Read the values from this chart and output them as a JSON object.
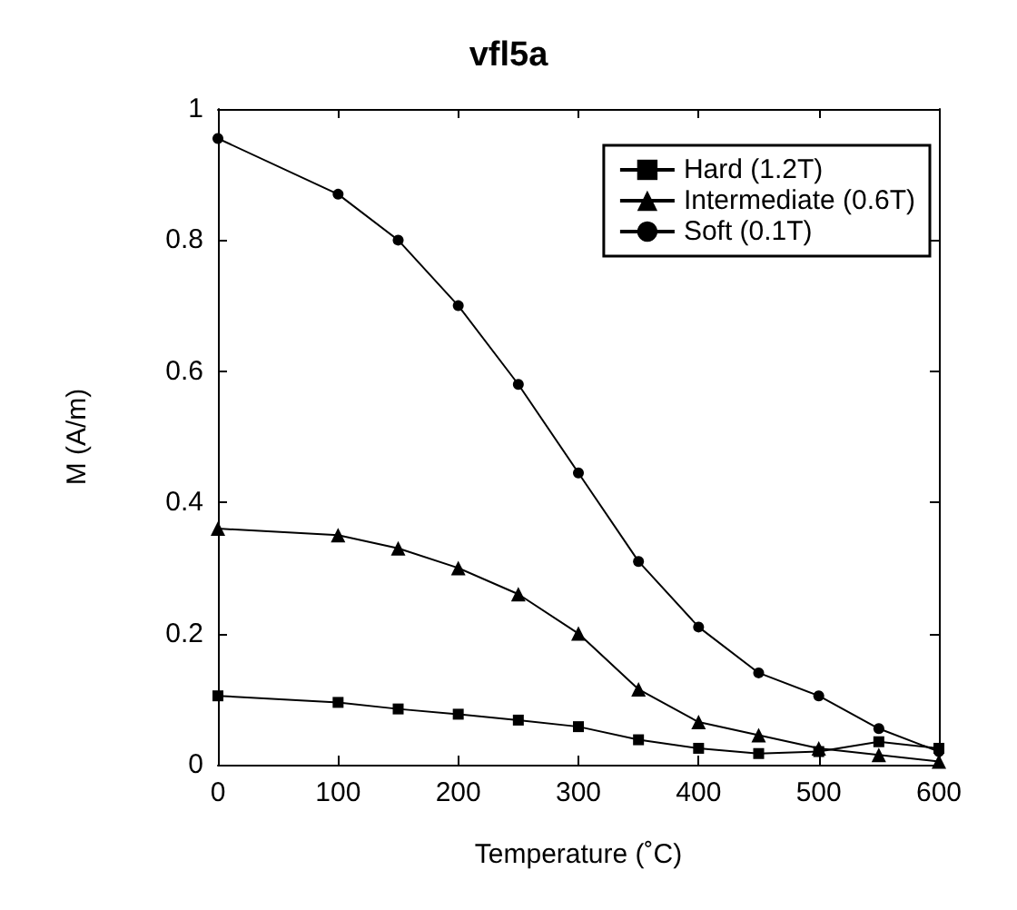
{
  "chart_data": {
    "type": "line",
    "title": "vfl5a",
    "xlabel": "Temperature (˚C)",
    "ylabel": "M (A/m)",
    "x": [
      0,
      100,
      150,
      200,
      250,
      300,
      350,
      400,
      450,
      500,
      550,
      600
    ],
    "series": [
      {
        "name": "Hard (1.2T)",
        "color": "#000000",
        "marker": "square",
        "values": [
          0.105,
          0.095,
          0.085,
          0.077,
          0.068,
          0.058,
          0.038,
          0.025,
          0.017,
          0.02,
          0.035,
          0.025
        ]
      },
      {
        "name": "Intermediate (0.6T)",
        "color": "#000000",
        "marker": "triangle",
        "values": [
          0.36,
          0.35,
          0.33,
          0.3,
          0.26,
          0.2,
          0.115,
          0.065,
          0.045,
          0.025,
          0.015,
          0.005
        ]
      },
      {
        "name": "Soft (0.1T)",
        "color": "#000000",
        "marker": "circle",
        "values": [
          0.955,
          0.87,
          0.8,
          0.7,
          0.58,
          0.445,
          0.31,
          0.21,
          0.14,
          0.105,
          0.055,
          0.02
        ]
      }
    ],
    "xlim": [
      0,
      600
    ],
    "xticks": [
      0,
      100,
      200,
      300,
      400,
      500,
      600
    ],
    "ylim": [
      0,
      1
    ],
    "yticks": [
      0,
      0.2,
      0.4,
      0.6,
      0.8,
      1
    ],
    "grid": false,
    "legend": "top right",
    "line_style": "solid"
  }
}
